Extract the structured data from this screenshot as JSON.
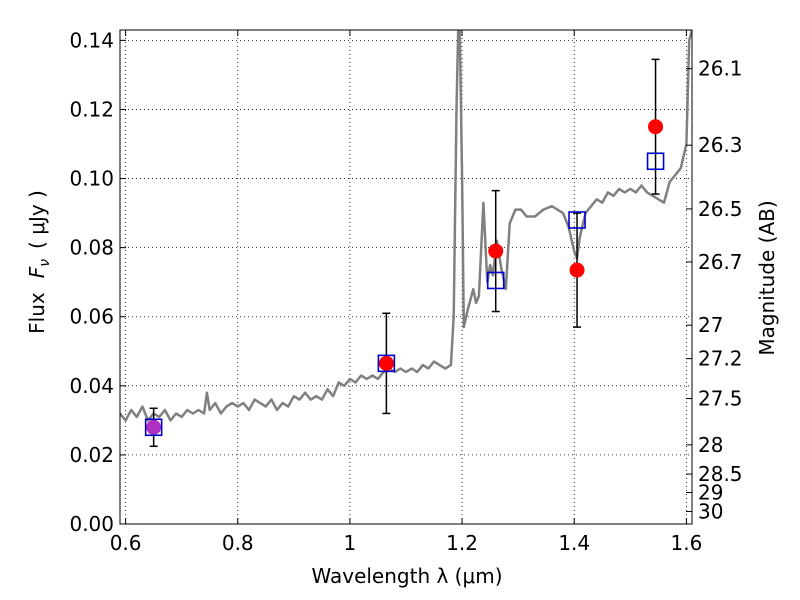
{
  "chart_data": {
    "type": "scatter",
    "xlabel": "Wavelength  λ (μm)",
    "ylabel_text": "Flux",
    "ylabel_symbol": "F",
    "ylabel_subscript": "ν",
    "ylabel_unit": "( μJy )",
    "y2label": "Magnitude (AB)",
    "xlim": [
      0.59,
      1.61
    ],
    "ylim": [
      0.0,
      0.143
    ],
    "grid": true,
    "xticks": [
      0.6,
      0.8,
      1.0,
      1.2,
      1.4,
      1.6
    ],
    "xtick_labels": [
      "0.6",
      "0.8",
      "1",
      "1.2",
      "1.4",
      "1.6"
    ],
    "yticks": [
      0.0,
      0.02,
      0.04,
      0.06,
      0.08,
      0.1,
      0.12,
      0.14
    ],
    "ytick_labels": [
      "0.00",
      "0.02",
      "0.04",
      "0.06",
      "0.08",
      "0.10",
      "0.12",
      "0.14"
    ],
    "right_ticks": [
      {
        "mag": 26.1,
        "label": "26.1"
      },
      {
        "mag": 26.3,
        "label": "26.3"
      },
      {
        "mag": 26.5,
        "label": "26.5"
      },
      {
        "mag": 26.7,
        "label": "26.7"
      },
      {
        "mag": 27.0,
        "label": "27"
      },
      {
        "mag": 27.2,
        "label": "27.2"
      },
      {
        "mag": 27.5,
        "label": "27.5"
      },
      {
        "mag": 28.0,
        "label": "28"
      },
      {
        "mag": 28.5,
        "label": "28.5"
      },
      {
        "mag": 29.0,
        "label": "29"
      },
      {
        "mag": 30.0,
        "label": "30"
      }
    ],
    "colors": {
      "observed": "#ff0000",
      "model_box": "#0000cc",
      "spectrum": "#808080",
      "errorbar": "#000000",
      "first_point": "#b030c0"
    },
    "observed": [
      {
        "x": 0.65,
        "y": 0.028,
        "yerr": 0.0055
      },
      {
        "x": 1.065,
        "y": 0.0465,
        "yerr": 0.0145
      },
      {
        "x": 1.26,
        "y": 0.079,
        "yerr": 0.0175
      },
      {
        "x": 1.405,
        "y": 0.0735,
        "yerr": 0.0165
      },
      {
        "x": 1.545,
        "y": 0.115,
        "yerr": 0.0195
      }
    ],
    "model_points": [
      {
        "x": 0.65,
        "y": 0.028
      },
      {
        "x": 1.065,
        "y": 0.0465
      },
      {
        "x": 1.26,
        "y": 0.0705
      },
      {
        "x": 1.405,
        "y": 0.088
      },
      {
        "x": 1.545,
        "y": 0.105
      }
    ],
    "spectrum": [
      [
        0.59,
        0.032
      ],
      [
        0.6,
        0.03
      ],
      [
        0.61,
        0.033
      ],
      [
        0.62,
        0.031
      ],
      [
        0.63,
        0.034
      ],
      [
        0.64,
        0.03
      ],
      [
        0.65,
        0.032
      ],
      [
        0.66,
        0.031
      ],
      [
        0.67,
        0.033
      ],
      [
        0.68,
        0.03
      ],
      [
        0.69,
        0.032
      ],
      [
        0.7,
        0.031
      ],
      [
        0.71,
        0.033
      ],
      [
        0.72,
        0.032
      ],
      [
        0.73,
        0.033
      ],
      [
        0.74,
        0.032
      ],
      [
        0.745,
        0.038
      ],
      [
        0.75,
        0.033
      ],
      [
        0.76,
        0.035
      ],
      [
        0.77,
        0.032
      ],
      [
        0.78,
        0.034
      ],
      [
        0.79,
        0.035
      ],
      [
        0.8,
        0.034
      ],
      [
        0.81,
        0.035
      ],
      [
        0.82,
        0.033
      ],
      [
        0.83,
        0.036
      ],
      [
        0.84,
        0.035
      ],
      [
        0.85,
        0.034
      ],
      [
        0.86,
        0.036
      ],
      [
        0.87,
        0.033
      ],
      [
        0.88,
        0.035
      ],
      [
        0.89,
        0.034
      ],
      [
        0.9,
        0.037
      ],
      [
        0.91,
        0.036
      ],
      [
        0.92,
        0.038
      ],
      [
        0.93,
        0.036
      ],
      [
        0.94,
        0.037
      ],
      [
        0.95,
        0.036
      ],
      [
        0.96,
        0.039
      ],
      [
        0.97,
        0.037
      ],
      [
        0.98,
        0.041
      ],
      [
        0.99,
        0.04
      ],
      [
        1.0,
        0.042
      ],
      [
        1.01,
        0.041
      ],
      [
        1.02,
        0.043
      ],
      [
        1.03,
        0.042
      ],
      [
        1.04,
        0.043
      ],
      [
        1.05,
        0.042
      ],
      [
        1.06,
        0.044
      ],
      [
        1.07,
        0.045
      ],
      [
        1.08,
        0.044
      ],
      [
        1.09,
        0.045
      ],
      [
        1.1,
        0.044
      ],
      [
        1.11,
        0.045
      ],
      [
        1.12,
        0.044
      ],
      [
        1.13,
        0.046
      ],
      [
        1.14,
        0.045
      ],
      [
        1.15,
        0.047
      ],
      [
        1.16,
        0.046
      ],
      [
        1.17,
        0.045
      ],
      [
        1.18,
        0.046
      ],
      [
        1.185,
        0.06
      ],
      [
        1.19,
        0.12
      ],
      [
        1.193,
        0.143
      ],
      [
        1.196,
        0.143
      ],
      [
        1.2,
        0.1
      ],
      [
        1.203,
        0.057
      ],
      [
        1.21,
        0.062
      ],
      [
        1.22,
        0.068
      ],
      [
        1.225,
        0.064
      ],
      [
        1.23,
        0.066
      ],
      [
        1.238,
        0.093
      ],
      [
        1.245,
        0.07
      ],
      [
        1.25,
        0.075
      ],
      [
        1.255,
        0.072
      ],
      [
        1.262,
        0.082
      ],
      [
        1.27,
        0.074
      ],
      [
        1.278,
        0.068
      ],
      [
        1.285,
        0.087
      ],
      [
        1.295,
        0.091
      ],
      [
        1.305,
        0.091
      ],
      [
        1.315,
        0.089
      ],
      [
        1.33,
        0.089
      ],
      [
        1.345,
        0.091
      ],
      [
        1.36,
        0.092
      ],
      [
        1.37,
        0.091
      ],
      [
        1.38,
        0.09
      ],
      [
        1.39,
        0.086
      ],
      [
        1.4,
        0.079
      ],
      [
        1.405,
        0.077
      ],
      [
        1.41,
        0.083
      ],
      [
        1.42,
        0.09
      ],
      [
        1.43,
        0.092
      ],
      [
        1.44,
        0.094
      ],
      [
        1.45,
        0.093
      ],
      [
        1.46,
        0.096
      ],
      [
        1.47,
        0.095
      ],
      [
        1.48,
        0.097
      ],
      [
        1.49,
        0.096
      ],
      [
        1.5,
        0.097
      ],
      [
        1.51,
        0.096
      ],
      [
        1.52,
        0.098
      ],
      [
        1.53,
        0.096
      ],
      [
        1.54,
        0.095
      ],
      [
        1.55,
        0.094
      ],
      [
        1.56,
        0.093
      ],
      [
        1.57,
        0.099
      ],
      [
        1.58,
        0.101
      ],
      [
        1.59,
        0.103
      ],
      [
        1.6,
        0.11
      ],
      [
        1.605,
        0.14
      ],
      [
        1.61,
        0.143
      ]
    ]
  }
}
